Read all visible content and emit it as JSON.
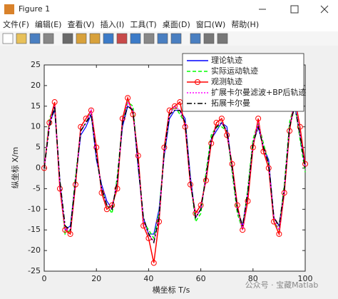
{
  "window": {
    "title": "Figure 1",
    "menu": [
      "文件(F)",
      "编辑(E)",
      "查看(V)",
      "插入(I)",
      "工具(T)",
      "桌面(D)",
      "窗口(W)",
      "帮助(H)"
    ]
  },
  "watermark": "公众号 · 宝藏Matlab",
  "chart_data": {
    "type": "line",
    "x_label": "横坐标 T/s",
    "y_label": "纵坐标 X/m",
    "x": [
      0,
      2,
      4,
      6,
      8,
      10,
      12,
      14,
      16,
      18,
      20,
      22,
      24,
      26,
      28,
      30,
      32,
      34,
      36,
      38,
      40,
      42,
      44,
      46,
      48,
      50,
      52,
      54,
      56,
      58,
      60,
      62,
      64,
      66,
      68,
      70,
      72,
      74,
      76,
      78,
      80,
      82,
      84,
      86,
      88,
      90,
      92,
      94,
      96,
      98,
      100
    ],
    "xlim": [
      0,
      100
    ],
    "xticks": [
      0,
      20,
      40,
      60,
      80,
      100
    ],
    "ylim": [
      -25,
      25
    ],
    "yticks": [
      -25,
      -20,
      -15,
      -10,
      -5,
      0,
      5,
      10,
      15,
      20,
      25
    ],
    "legend": "upper right",
    "series": [
      {
        "name": "理论轨迹",
        "color": "#0000ff",
        "line_style": "solid",
        "values": [
          0,
          11,
          14,
          -3,
          -15,
          -14,
          -3,
          8,
          10,
          13,
          2,
          -4,
          -8,
          -10,
          -3,
          10,
          15,
          14,
          0,
          -12,
          -16,
          -16,
          -10,
          3,
          12,
          14,
          14,
          12,
          -2,
          -12,
          -10,
          -2,
          7,
          9,
          11,
          10,
          0,
          -10,
          -14,
          -6,
          6,
          10,
          5,
          2,
          -12,
          -14,
          -5,
          10,
          15,
          8,
          0
        ]
      },
      {
        "name": "实际运动轨迹",
        "color": "#00ff00",
        "line_style": "dashed",
        "values": [
          0,
          12,
          15,
          -4,
          -16,
          -15,
          -2,
          9,
          11,
          14,
          3,
          -5,
          -9,
          -11,
          -2,
          11,
          16,
          15,
          1,
          -13,
          -15,
          -17,
          -11,
          4,
          13,
          15,
          13,
          11,
          -3,
          -13,
          -11,
          -1,
          8,
          10,
          10,
          9,
          -1,
          -11,
          -15,
          -5,
          7,
          11,
          6,
          1,
          -13,
          -15,
          -4,
          11,
          16,
          7,
          -1
        ]
      },
      {
        "name": "观测轨迹",
        "color": "#ff0000",
        "line_style": "solid",
        "marker": "circle",
        "values": [
          0,
          11,
          16,
          -5,
          -15,
          -16,
          -4,
          10,
          12,
          14,
          5,
          -6,
          -10,
          -9,
          -5,
          12,
          17,
          13,
          3,
          -14,
          -17,
          -23,
          -13,
          5,
          14,
          15,
          16,
          10,
          -4,
          -11,
          -9,
          -3,
          6,
          11,
          12,
          8,
          1,
          -9,
          -15,
          -8,
          5,
          12,
          4,
          0,
          -13,
          -16,
          -6,
          9,
          17,
          10,
          1
        ]
      },
      {
        "name": "扩展卡尔曼滤波+BP后轨迹",
        "color": "#ff00ff",
        "line_style": "dotted",
        "values": [
          0,
          11,
          15,
          -4,
          -15,
          -15,
          -3,
          9,
          11,
          14,
          3,
          -5,
          -9,
          -10,
          -3,
          11,
          16,
          14,
          1,
          -13,
          -16,
          -18,
          -12,
          4,
          13,
          15,
          14,
          11,
          -3,
          -12,
          -10,
          -2,
          7,
          10,
          11,
          9,
          0,
          -10,
          -15,
          -6,
          6,
          11,
          5,
          1,
          -12,
          -15,
          -5,
          10,
          16,
          8,
          0
        ]
      },
      {
        "name": "拓展卡尔曼",
        "color": "#000000",
        "line_style": "dashdot",
        "values": [
          0,
          10,
          15,
          -3,
          -14,
          -15,
          -3,
          9,
          11,
          13,
          3,
          -5,
          -9,
          -10,
          -3,
          11,
          15,
          14,
          1,
          -12,
          -16,
          -18,
          -12,
          4,
          13,
          14,
          14,
          11,
          -3,
          -12,
          -10,
          -2,
          7,
          10,
          11,
          9,
          0,
          -10,
          -14,
          -6,
          6,
          10,
          5,
          1,
          -12,
          -14,
          -5,
          10,
          15,
          8,
          0
        ]
      }
    ]
  }
}
